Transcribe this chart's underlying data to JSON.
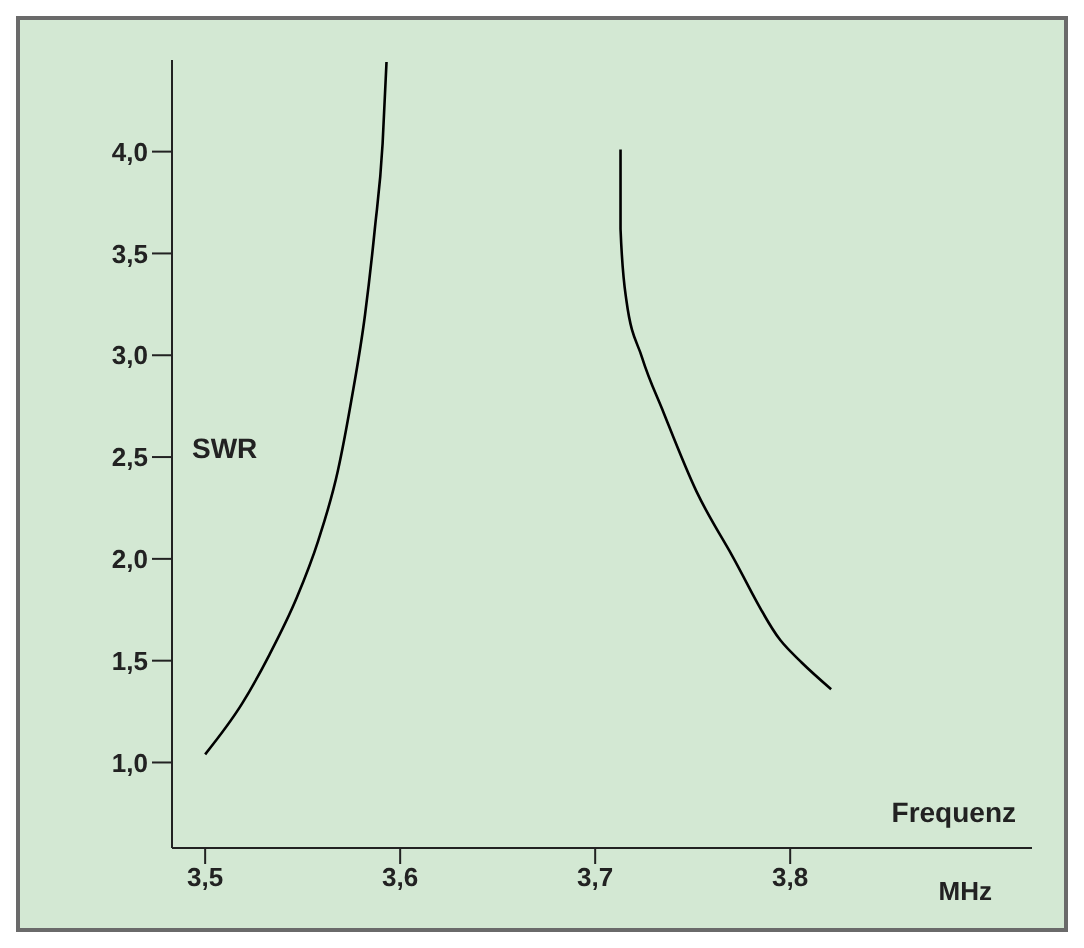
{
  "chart_data": {
    "type": "line",
    "xlabel": "Frequenz",
    "ylabel": "SWR",
    "annotations": [
      "MHz"
    ],
    "xlim": [
      3.483,
      3.924
    ],
    "ylim": [
      0.58,
      4.45
    ],
    "xticks": [
      {
        "value": 3.5,
        "label": "3,5"
      },
      {
        "value": 3.6,
        "label": "3,6"
      },
      {
        "value": 3.7,
        "label": "3,7"
      },
      {
        "value": 3.8,
        "label": "3,8"
      }
    ],
    "yticks": [
      {
        "value": 1.0,
        "label": "1,0"
      },
      {
        "value": 1.5,
        "label": "1,5"
      },
      {
        "value": 2.0,
        "label": "2,0"
      },
      {
        "value": 2.5,
        "label": "2,5"
      },
      {
        "value": 3.0,
        "label": "3,0"
      },
      {
        "value": 3.5,
        "label": "3,5"
      },
      {
        "value": 4.0,
        "label": "4,0"
      }
    ],
    "marker": "none",
    "series": [
      {
        "color": "#000000",
        "x": [
          3.5,
          3.519,
          3.533,
          3.547,
          3.558,
          3.568,
          3.575,
          3.582,
          3.587,
          3.591,
          3.593
        ],
        "values": [
          1.04,
          1.29,
          1.53,
          1.81,
          2.09,
          2.43,
          2.78,
          3.2,
          3.62,
          4.04,
          4.44
        ]
      },
      {
        "color": "#000000",
        "x": [
          3.713,
          3.713,
          3.716,
          3.724,
          3.735,
          3.752,
          3.77,
          3.795,
          3.806,
          3.821
        ],
        "values": [
          4.01,
          3.62,
          3.27,
          2.99,
          2.72,
          2.33,
          2.02,
          1.6,
          1.49,
          1.36
        ]
      }
    ]
  }
}
